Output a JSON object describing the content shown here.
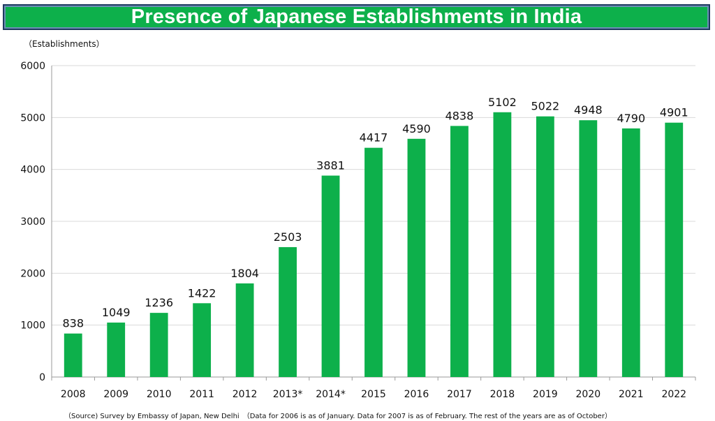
{
  "title": "Presence of Japanese Establishments in India",
  "unit_label": "（Establishments）",
  "source_note": "（Source) Survey by Embassy of Japan, New Delhi　（Data for 2006 is as of January. Data for 2007 is as of February. The rest of the years are as of October）",
  "colors": {
    "bar": "#0db04b",
    "title_bg": "#0db04b",
    "title_border": "#1e3a5f"
  },
  "chart_data": {
    "type": "bar",
    "title": "Presence of Japanese Establishments in India",
    "xlabel": "",
    "ylabel": "",
    "categories": [
      "2008",
      "2009",
      "2010",
      "2011",
      "2012",
      "2013*",
      "2014*",
      "2015",
      "2016",
      "2017",
      "2018",
      "2019",
      "2020",
      "2021",
      "2022"
    ],
    "values": [
      838,
      1049,
      1236,
      1422,
      1804,
      2503,
      3881,
      4417,
      4590,
      4838,
      5102,
      5022,
      4948,
      4790,
      4901
    ],
    "ylim": [
      0,
      6000
    ],
    "yticks": [
      0,
      1000,
      2000,
      3000,
      4000,
      5000,
      6000
    ],
    "grid": true,
    "legend": "none",
    "data_labels": true
  }
}
